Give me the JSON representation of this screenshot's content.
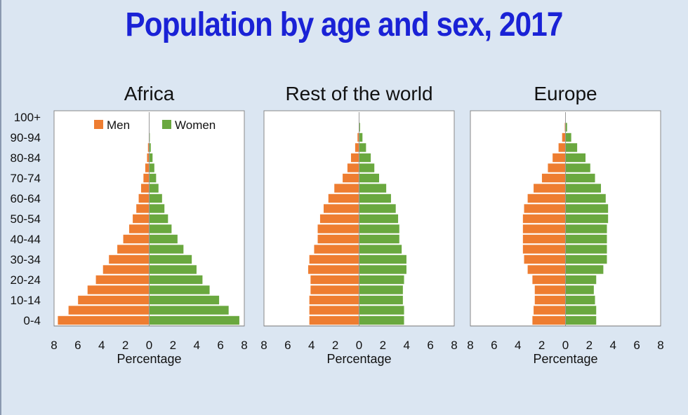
{
  "title": "Population by age and sex, 2017",
  "colors": {
    "men": "#ee7d31",
    "women": "#6aa83f",
    "title": "#1a22d6",
    "background": "#dbe6f2"
  },
  "chart_data": {
    "type": "bar",
    "orientation": "horizontal",
    "subtype": "population-pyramid",
    "age_groups": [
      "0-4",
      "5-9",
      "10-14",
      "15-19",
      "20-24",
      "25-29",
      "30-34",
      "35-39",
      "40-44",
      "45-49",
      "50-54",
      "55-59",
      "60-64",
      "65-69",
      "70-74",
      "75-79",
      "80-84",
      "85-89",
      "90-94",
      "95-99",
      "100+"
    ],
    "y_tick_labels": [
      "100+",
      "90-94",
      "80-84",
      "70-74",
      "60-64",
      "50-54",
      "40-44",
      "30-34",
      "20-24",
      "10-14",
      "0-4"
    ],
    "x_ticks": [
      "8",
      "6",
      "4",
      "2",
      "0",
      "2",
      "4",
      "6",
      "8"
    ],
    "xlim": [
      -8,
      8
    ],
    "xlabel": "Percentage",
    "legend": {
      "position": "top",
      "men": "Men",
      "women": "Women"
    },
    "panels": [
      {
        "title": "Africa",
        "men": [
          7.7,
          6.8,
          6.0,
          5.2,
          4.5,
          3.9,
          3.4,
          2.7,
          2.2,
          1.7,
          1.4,
          1.1,
          0.9,
          0.7,
          0.5,
          0.35,
          0.2,
          0.12,
          0.05,
          0.02,
          0.01
        ],
        "women": [
          7.6,
          6.7,
          5.9,
          5.1,
          4.5,
          4.0,
          3.6,
          2.9,
          2.4,
          1.9,
          1.6,
          1.3,
          1.1,
          0.8,
          0.6,
          0.45,
          0.3,
          0.15,
          0.07,
          0.03,
          0.01
        ]
      },
      {
        "title": "Rest of the world",
        "men": [
          4.2,
          4.2,
          4.2,
          4.1,
          4.1,
          4.3,
          4.2,
          3.8,
          3.5,
          3.5,
          3.3,
          3.0,
          2.6,
          2.1,
          1.4,
          1.0,
          0.7,
          0.35,
          0.15,
          0.05,
          0.01
        ],
        "women": [
          3.8,
          3.8,
          3.7,
          3.7,
          3.8,
          4.0,
          4.0,
          3.6,
          3.4,
          3.4,
          3.3,
          3.1,
          2.7,
          2.3,
          1.7,
          1.3,
          1.0,
          0.6,
          0.3,
          0.1,
          0.02
        ]
      },
      {
        "title": "Europe",
        "men": [
          2.8,
          2.7,
          2.6,
          2.6,
          2.8,
          3.2,
          3.5,
          3.6,
          3.6,
          3.6,
          3.6,
          3.5,
          3.2,
          2.7,
          2.0,
          1.5,
          1.1,
          0.6,
          0.3,
          0.08,
          0.02
        ],
        "women": [
          2.6,
          2.6,
          2.5,
          2.4,
          2.6,
          3.2,
          3.5,
          3.5,
          3.5,
          3.5,
          3.6,
          3.6,
          3.4,
          3.0,
          2.5,
          2.1,
          1.7,
          1.0,
          0.5,
          0.15,
          0.03
        ]
      }
    ]
  }
}
